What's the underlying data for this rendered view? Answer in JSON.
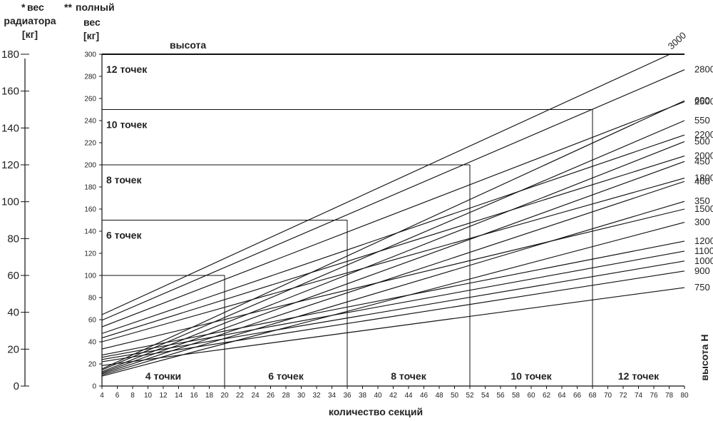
{
  "chart_data": {
    "type": "line",
    "x": [
      4,
      80
    ],
    "xlim": [
      4,
      80
    ],
    "ylim": [
      0,
      300
    ],
    "left_ylim": [
      0,
      180
    ],
    "xticks": [
      4,
      6,
      8,
      10,
      12,
      14,
      16,
      18,
      20,
      22,
      24,
      26,
      28,
      30,
      32,
      34,
      36,
      38,
      40,
      42,
      44,
      46,
      48,
      50,
      52,
      54,
      56,
      58,
      60,
      62,
      64,
      66,
      68,
      70,
      72,
      74,
      76,
      78,
      80
    ],
    "yticks": [
      0,
      20,
      40,
      60,
      80,
      100,
      120,
      140,
      160,
      180,
      200,
      220,
      240,
      260,
      280,
      300
    ],
    "left_yticks": [
      0,
      20,
      40,
      60,
      80,
      100,
      120,
      140,
      160,
      180
    ],
    "xlabel": "количество секций",
    "right_ylabel": "высота H",
    "top_label": "высота",
    "left_axis_header": {
      "star": "*",
      "line1": "вес",
      "line2": "радиатора",
      "unit": "[кг]"
    },
    "total_axis_header": {
      "star": "**",
      "line1": "полный",
      "line2": "вес",
      "unit": "[кг]"
    },
    "series": [
      {
        "name": "3000",
        "values": [
          64.5,
          306
        ]
      },
      {
        "name": "2800",
        "values": [
          59.5,
          286
        ]
      },
      {
        "name": "2500",
        "values": [
          53.5,
          257
        ]
      },
      {
        "name": "2200",
        "values": [
          47.5,
          227
        ]
      },
      {
        "name": "2000",
        "values": [
          43.5,
          208
        ]
      },
      {
        "name": "1800",
        "values": [
          40,
          188
        ]
      },
      {
        "name": "1500",
        "values": [
          33.5,
          160
        ]
      },
      {
        "name": "1200",
        "values": [
          28,
          131
        ]
      },
      {
        "name": "1100",
        "values": [
          26,
          122
        ]
      },
      {
        "name": "1000",
        "values": [
          24,
          113
        ]
      },
      {
        "name": "900",
        "values": [
          22,
          104
        ]
      },
      {
        "name": "750",
        "values": [
          18.5,
          89
        ]
      },
      {
        "name": "600",
        "values": [
          15.5,
          258
        ]
      },
      {
        "name": "550",
        "values": [
          14.5,
          240
        ]
      },
      {
        "name": "500",
        "values": [
          13,
          221
        ]
      },
      {
        "name": "450",
        "values": [
          12,
          203
        ]
      },
      {
        "name": "400",
        "values": [
          11,
          185
        ]
      },
      {
        "name": "350",
        "values": [
          10,
          167
        ]
      },
      {
        "name": "300",
        "values": [
          9,
          148
        ]
      }
    ],
    "fixing_zones": [
      {
        "label": "4 точки",
        "max_sections": 20,
        "max_total_weight": 100,
        "bottom_label": "4 точки"
      },
      {
        "label": "6 точек",
        "max_sections": 36,
        "max_total_weight": 150,
        "bottom_label": "6 точек"
      },
      {
        "label": "8 точек",
        "max_sections": 52,
        "max_total_weight": 200,
        "bottom_label": "8 точек"
      },
      {
        "label": "10 точек",
        "max_sections": 68,
        "max_total_weight": 250,
        "bottom_label": "10 точек"
      },
      {
        "label": "12 точек",
        "max_sections": 80,
        "max_total_weight": 300,
        "bottom_label": "12 точек"
      }
    ]
  }
}
